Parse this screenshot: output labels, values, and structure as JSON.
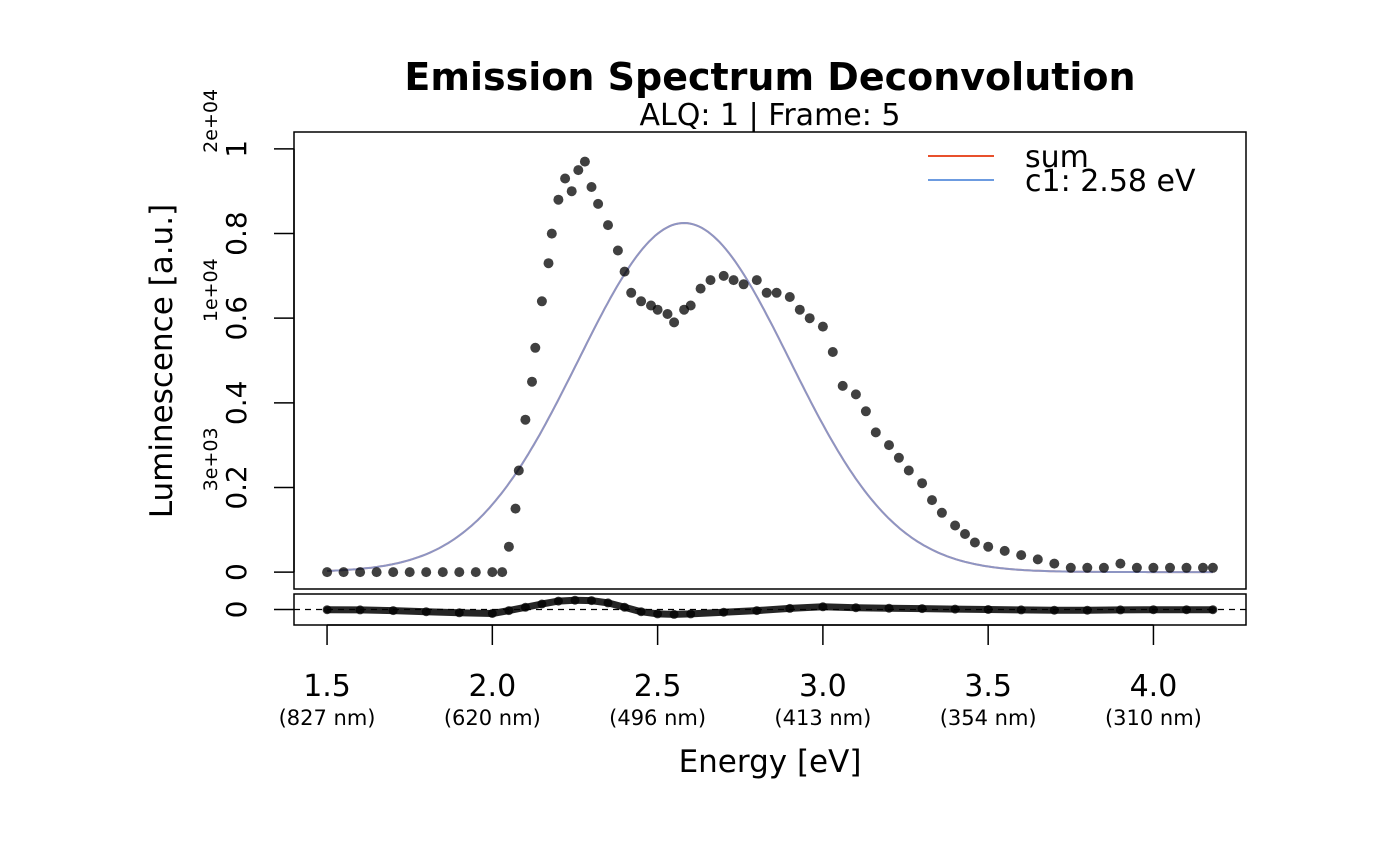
{
  "chart_data": {
    "type": "scatter",
    "title": "Emission Spectrum Deconvolution",
    "subtitle": "ALQ: 1 | Frame: 5",
    "xlabel": "Energy [eV]",
    "ylabel": "Luminescence [a.u.]",
    "xlim": [
      1.4,
      4.28
    ],
    "ylim": [
      -0.04,
      1.04
    ],
    "x_ticks": [
      "1.5",
      "2.0",
      "2.5",
      "3.0",
      "3.5",
      "4.0"
    ],
    "x_tick_values": [
      1.5,
      2.0,
      2.5,
      3.0,
      3.5,
      4.0
    ],
    "x_wavelength_labels": [
      "(827 nm)",
      "(620 nm)",
      "(496 nm)",
      "(413 nm)",
      "(354 nm)",
      "(310 nm)"
    ],
    "y_ticks": [
      "0",
      "0.2",
      "0.4",
      "0.6",
      "0.8",
      "1"
    ],
    "y_tick_values": [
      0,
      0.2,
      0.4,
      0.6,
      0.8,
      1.0
    ],
    "y_secondary_ticks": [
      "3e+03",
      "1e+04",
      "2e+04"
    ],
    "y_secondary_tick_values": [
      0.2,
      0.6,
      1.0
    ],
    "residual_ytick": "0",
    "legend": {
      "position": "top-right",
      "entries": [
        {
          "label": "sum",
          "color": "#E8502C"
        },
        {
          "label": "c1: 2.58 eV",
          "color": "#6C9BE0"
        }
      ]
    },
    "series": [
      {
        "name": "",
        "kind": "points",
        "color": "#000000",
        "x": [
          1.5,
          1.55,
          1.6,
          1.65,
          1.7,
          1.75,
          1.8,
          1.85,
          1.9,
          1.95,
          2.0,
          2.03,
          2.05,
          2.07,
          2.08,
          2.1,
          2.12,
          2.13,
          2.15,
          2.17,
          2.18,
          2.2,
          2.22,
          2.24,
          2.26,
          2.28,
          2.3,
          2.32,
          2.35,
          2.38,
          2.4,
          2.42,
          2.45,
          2.48,
          2.5,
          2.53,
          2.55,
          2.58,
          2.6,
          2.63,
          2.66,
          2.7,
          2.73,
          2.76,
          2.8,
          2.83,
          2.86,
          2.9,
          2.93,
          2.96,
          3.0,
          3.03,
          3.06,
          3.1,
          3.13,
          3.16,
          3.2,
          3.23,
          3.26,
          3.3,
          3.33,
          3.36,
          3.4,
          3.43,
          3.46,
          3.5,
          3.55,
          3.6,
          3.65,
          3.7,
          3.75,
          3.8,
          3.85,
          3.9,
          3.95,
          4.0,
          4.05,
          4.1,
          4.15,
          4.18
        ],
        "y": [
          0,
          0,
          0,
          0,
          0,
          0,
          0,
          0,
          0,
          0,
          0,
          0,
          0.06,
          0.15,
          0.24,
          0.36,
          0.45,
          0.53,
          0.64,
          0.73,
          0.8,
          0.88,
          0.93,
          0.9,
          0.95,
          0.97,
          0.91,
          0.87,
          0.82,
          0.76,
          0.71,
          0.66,
          0.64,
          0.63,
          0.62,
          0.61,
          0.59,
          0.62,
          0.63,
          0.67,
          0.69,
          0.7,
          0.69,
          0.68,
          0.69,
          0.66,
          0.66,
          0.65,
          0.62,
          0.6,
          0.58,
          0.52,
          0.44,
          0.42,
          0.38,
          0.33,
          0.3,
          0.27,
          0.24,
          0.21,
          0.17,
          0.14,
          0.11,
          0.09,
          0.07,
          0.06,
          0.05,
          0.04,
          0.03,
          0.02,
          0.01,
          0.01,
          0.01,
          0.02,
          0.01,
          0.01,
          0.01,
          0.01,
          0.01,
          0.01
        ]
      },
      {
        "name": "sum",
        "kind": "line",
        "color": "#E8502C",
        "peak": 2.58,
        "amplitude": 0.825,
        "sigma": 0.32
      },
      {
        "name": "c1: 2.58 eV",
        "kind": "line",
        "color": "#6C9BE0",
        "peak": 2.58,
        "amplitude": 0.825,
        "sigma": 0.32
      }
    ],
    "residuals": {
      "x": [
        1.5,
        1.6,
        1.7,
        1.8,
        1.9,
        2.0,
        2.05,
        2.1,
        2.15,
        2.2,
        2.25,
        2.3,
        2.35,
        2.4,
        2.45,
        2.5,
        2.55,
        2.6,
        2.7,
        2.8,
        2.9,
        3.0,
        3.1,
        3.2,
        3.3,
        3.4,
        3.5,
        3.6,
        3.7,
        3.8,
        3.9,
        4.0,
        4.1,
        4.18
      ],
      "y": [
        -0.01,
        -0.02,
        -0.05,
        -0.1,
        -0.15,
        -0.18,
        -0.05,
        0.1,
        0.25,
        0.38,
        0.42,
        0.4,
        0.3,
        0.1,
        -0.1,
        -0.2,
        -0.22,
        -0.2,
        -0.12,
        -0.05,
        0.05,
        0.12,
        0.08,
        0.06,
        0.04,
        0.02,
        0.0,
        -0.02,
        -0.03,
        -0.03,
        -0.02,
        -0.01,
        -0.01,
        -0.01
      ]
    }
  }
}
